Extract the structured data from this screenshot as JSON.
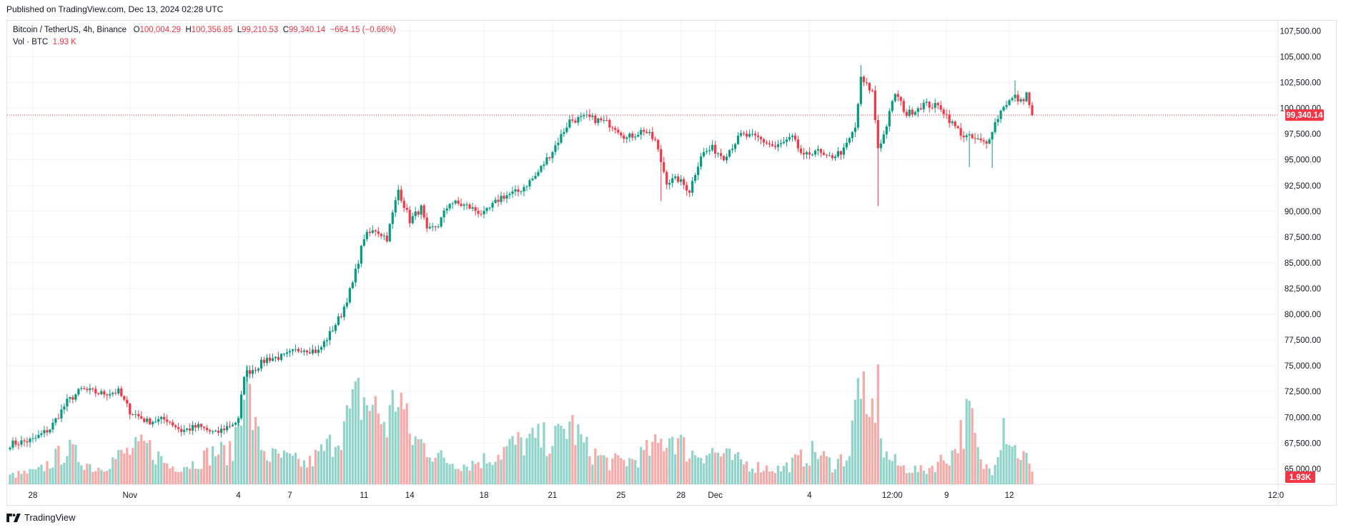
{
  "header": {
    "published": "Published on TradingView.com, Dec 13, 2024 02:28 UTC"
  },
  "legend": {
    "symbol": "Bitcoin / TetherUS, 4h, Binance",
    "o_label": "O",
    "o_value": "100,004.29",
    "h_label": "H",
    "h_value": "100,356.85",
    "l_label": "L",
    "l_value": "99,210.53",
    "c_label": "C",
    "c_value": "99,340.14",
    "change": "−664.15 (−0.66%)",
    "vol_label": "Vol · BTC",
    "vol_value": "1.93 K"
  },
  "footer": {
    "brand": "TradingView"
  },
  "colors": {
    "up": "#089981",
    "down": "#f23645",
    "up_vol": "#91d3c9",
    "down_vol": "#f7a9a7",
    "grid": "#f0f3fa"
  },
  "chart_data": {
    "type": "candlestick",
    "title": "Bitcoin / TetherUS, 4h, Binance",
    "y_axis": {
      "ticks": [
        "107,500.00",
        "105,000.00",
        "102,500.00",
        "100,000.00",
        "97,500.00",
        "95,000.00",
        "92,500.00",
        "90,000.00",
        "87,500.00",
        "85,000.00",
        "82,500.00",
        "80,000.00",
        "77,500.00",
        "75,000.00",
        "72,500.00",
        "70,000.00",
        "67,500.00",
        "65,000.00"
      ],
      "range": [
        63500,
        108500
      ]
    },
    "x_axis": {
      "ticks": [
        "28",
        "Nov",
        "4",
        "7",
        "11",
        "14",
        "18",
        "21",
        "25",
        "28",
        "Dec",
        "4",
        "12:00",
        "9",
        "12",
        "12:0"
      ]
    },
    "last_price_label": "99,340.14",
    "last_price": 99340.14,
    "last_volume_label": "1.93K",
    "volume_range": [
      0,
      11000
    ],
    "key_points": [
      [
        0,
        67400
      ],
      [
        8,
        67800
      ],
      [
        14,
        68900
      ],
      [
        20,
        71500
      ],
      [
        25,
        72700
      ],
      [
        32,
        72300
      ],
      [
        38,
        72500
      ],
      [
        42,
        70600
      ],
      [
        48,
        69600
      ],
      [
        55,
        69800
      ],
      [
        60,
        68700
      ],
      [
        66,
        69100
      ],
      [
        72,
        68400
      ],
      [
        76,
        69100
      ],
      [
        80,
        69700
      ],
      [
        82,
        74200
      ],
      [
        86,
        74800
      ],
      [
        90,
        75700
      ],
      [
        96,
        75900
      ],
      [
        102,
        76700
      ],
      [
        108,
        76400
      ],
      [
        112,
        78100
      ],
      [
        116,
        80000
      ],
      [
        120,
        83000
      ],
      [
        124,
        87500
      ],
      [
        128,
        88200
      ],
      [
        132,
        87400
      ],
      [
        136,
        92100
      ],
      [
        140,
        89100
      ],
      [
        144,
        90300
      ],
      [
        146,
        88000
      ],
      [
        150,
        88700
      ],
      [
        154,
        90900
      ],
      [
        160,
        90500
      ],
      [
        166,
        89700
      ],
      [
        172,
        91400
      ],
      [
        178,
        91900
      ],
      [
        184,
        93400
      ],
      [
        190,
        95900
      ],
      [
        196,
        98800
      ],
      [
        202,
        99100
      ],
      [
        208,
        98700
      ],
      [
        212,
        98200
      ],
      [
        216,
        97100
      ],
      [
        222,
        97900
      ],
      [
        226,
        96800
      ],
      [
        230,
        92900
      ],
      [
        234,
        93100
      ],
      [
        238,
        92000
      ],
      [
        242,
        95500
      ],
      [
        246,
        96100
      ],
      [
        250,
        95300
      ],
      [
        256,
        97400
      ],
      [
        262,
        97100
      ],
      [
        268,
        96200
      ],
      [
        274,
        97100
      ],
      [
        278,
        95200
      ],
      [
        282,
        96000
      ],
      [
        286,
        95100
      ],
      [
        292,
        95900
      ],
      [
        296,
        98100
      ],
      [
        298,
        102800
      ],
      [
        302,
        101600
      ],
      [
        304,
        96200
      ],
      [
        306,
        97400
      ],
      [
        310,
        101500
      ],
      [
        314,
        99400
      ],
      [
        320,
        100400
      ],
      [
        326,
        100100
      ],
      [
        330,
        98500
      ],
      [
        334,
        97300
      ],
      [
        338,
        97000
      ],
      [
        342,
        96500
      ],
      [
        344,
        98000
      ],
      [
        348,
        100300
      ],
      [
        352,
        101100
      ],
      [
        354,
        100600
      ],
      [
        356,
        101400
      ],
      [
        358,
        99340
      ]
    ],
    "volume_key_points": [
      [
        0,
        800
      ],
      [
        10,
        1200
      ],
      [
        20,
        3200
      ],
      [
        30,
        1400
      ],
      [
        40,
        2800
      ],
      [
        48,
        3500
      ],
      [
        56,
        1600
      ],
      [
        64,
        1900
      ],
      [
        72,
        3000
      ],
      [
        78,
        2800
      ],
      [
        82,
        10500
      ],
      [
        86,
        4800
      ],
      [
        90,
        2600
      ],
      [
        96,
        2400
      ],
      [
        104,
        1800
      ],
      [
        112,
        3600
      ],
      [
        118,
        5800
      ],
      [
        122,
        7800
      ],
      [
        126,
        7400
      ],
      [
        132,
        5400
      ],
      [
        136,
        8800
      ],
      [
        140,
        4400
      ],
      [
        146,
        3400
      ],
      [
        152,
        2200
      ],
      [
        160,
        1800
      ],
      [
        168,
        2400
      ],
      [
        176,
        3600
      ],
      [
        184,
        4000
      ],
      [
        192,
        4200
      ],
      [
        196,
        5600
      ],
      [
        202,
        3200
      ],
      [
        210,
        2000
      ],
      [
        218,
        2200
      ],
      [
        226,
        3400
      ],
      [
        232,
        4600
      ],
      [
        238,
        2800
      ],
      [
        246,
        3000
      ],
      [
        254,
        2200
      ],
      [
        262,
        1600
      ],
      [
        270,
        1400
      ],
      [
        276,
        2200
      ],
      [
        282,
        3000
      ],
      [
        288,
        1800
      ],
      [
        294,
        2800
      ],
      [
        298,
        10800
      ],
      [
        300,
        4600
      ],
      [
        304,
        8800
      ],
      [
        306,
        2800
      ],
      [
        312,
        1600
      ],
      [
        320,
        1200
      ],
      [
        330,
        2800
      ],
      [
        336,
        6500
      ],
      [
        340,
        1800
      ],
      [
        344,
        1400
      ],
      [
        348,
        6000
      ],
      [
        352,
        3200
      ],
      [
        356,
        2400
      ],
      [
        358,
        900
      ]
    ],
    "wick_events": [
      [
        304,
        90500
      ],
      [
        298,
        104200
      ],
      [
        336,
        94300
      ],
      [
        344,
        94200
      ],
      [
        228,
        91000
      ],
      [
        352,
        102700
      ]
    ]
  }
}
